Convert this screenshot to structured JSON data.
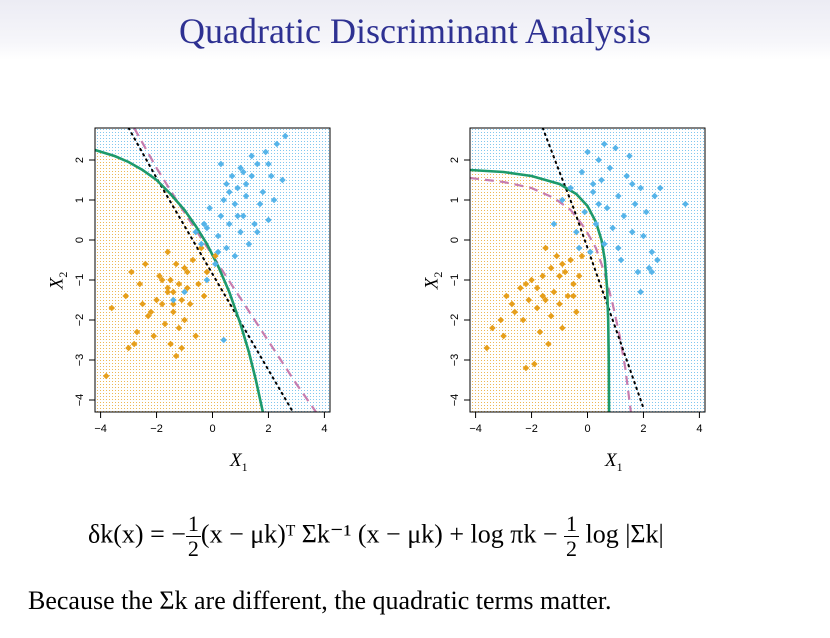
{
  "title": "Quadratic Discriminant Analysis",
  "equation": {
    "lhs": "δk(x) = −",
    "frac_num": "1",
    "frac_den": "2",
    "body": "(x − μk)ᵀ Σk⁻¹ (x − μk) + log πk −",
    "tail": "log |Σk|"
  },
  "caption": "Because the Σk are different, the quadratic terms matter.",
  "colors": {
    "class1": "#e69f1c",
    "class2": "#56b4e9",
    "qda_boundary": "#1d9a6c",
    "lda_boundary": "#000000",
    "bayes_boundary": "#c77daf",
    "title": "#2e3192"
  },
  "chart_data": [
    {
      "type": "scatter",
      "xlabel": "X1",
      "ylabel": "X2",
      "xlim": [
        -4.2,
        4.2
      ],
      "ylim": [
        -4.3,
        2.8
      ],
      "xticks": [
        -4,
        -2,
        0,
        2,
        4
      ],
      "yticks": [
        -4,
        -3,
        -2,
        -1,
        0,
        1,
        2
      ],
      "series": [
        {
          "points": [
            [
              -3.8,
              -3.4
            ],
            [
              -3.6,
              -1.7
            ],
            [
              -3.1,
              -1.4
            ],
            [
              -3.0,
              -2.7
            ],
            [
              -2.9,
              -0.8
            ],
            [
              -2.8,
              -2.6
            ],
            [
              -2.7,
              -2.3
            ],
            [
              -2.6,
              -1.1
            ],
            [
              -2.5,
              -1.6
            ],
            [
              -2.4,
              -0.6
            ],
            [
              -2.3,
              -1.9
            ],
            [
              -2.2,
              -1.8
            ],
            [
              -2.1,
              -2.4
            ],
            [
              -2.0,
              -1.5
            ],
            [
              -1.9,
              -0.9
            ],
            [
              -1.8,
              -1.6
            ],
            [
              -1.7,
              -2.1
            ],
            [
              -1.6,
              -1.3
            ],
            [
              -1.6,
              -0.3
            ],
            [
              -1.5,
              -1.0
            ],
            [
              -1.5,
              -2.6
            ],
            [
              -1.4,
              -1.8
            ],
            [
              -1.4,
              -1.3
            ],
            [
              -1.3,
              -0.6
            ],
            [
              -1.3,
              -2.9
            ],
            [
              -1.2,
              -1.1
            ],
            [
              -1.2,
              -2.2
            ],
            [
              -1.1,
              -1.5
            ],
            [
              -1.0,
              -0.7
            ],
            [
              -1.0,
              -2.0
            ],
            [
              -0.9,
              -1.2
            ],
            [
              -0.8,
              -1.6
            ],
            [
              -0.7,
              -0.5
            ],
            [
              -0.6,
              -2.4
            ],
            [
              -0.5,
              -1.1
            ],
            [
              -0.4,
              -0.2
            ],
            [
              -0.3,
              -1.4
            ],
            [
              -0.2,
              -0.8
            ],
            [
              0.1,
              -0.4
            ],
            [
              -1.8,
              -1.0
            ],
            [
              -1.4,
              -1.6
            ],
            [
              -1.1,
              -2.7
            ],
            [
              -0.9,
              -0.8
            ],
            [
              -1.6,
              -1.2
            ]
          ]
        },
        {
          "points": [
            [
              -1.4,
              -1.5
            ],
            [
              -1.0,
              -1.3
            ],
            [
              -0.6,
              0.2
            ],
            [
              -0.4,
              -0.1
            ],
            [
              -0.2,
              0.3
            ],
            [
              -0.1,
              0.8
            ],
            [
              0.1,
              -0.6
            ],
            [
              0.2,
              0.1
            ],
            [
              0.3,
              0.6
            ],
            [
              0.4,
              1.0
            ],
            [
              0.5,
              -0.2
            ],
            [
              0.6,
              0.4
            ],
            [
              0.7,
              1.6
            ],
            [
              0.8,
              0.9
            ],
            [
              0.8,
              -0.4
            ],
            [
              0.9,
              1.3
            ],
            [
              1.0,
              0.2
            ],
            [
              1.0,
              1.8
            ],
            [
              1.1,
              0.6
            ],
            [
              1.2,
              1.1
            ],
            [
              1.3,
              -0.1
            ],
            [
              1.4,
              1.6
            ],
            [
              1.5,
              0.4
            ],
            [
              1.6,
              1.9
            ],
            [
              1.7,
              0.9
            ],
            [
              1.8,
              1.2
            ],
            [
              1.9,
              2.2
            ],
            [
              2.0,
              0.5
            ],
            [
              2.1,
              1.6
            ],
            [
              2.2,
              1.0
            ],
            [
              2.3,
              2.4
            ],
            [
              2.5,
              1.5
            ],
            [
              2.6,
              2.6
            ],
            [
              1.2,
              1.4
            ],
            [
              0.6,
              1.2
            ],
            [
              1.6,
              0.2
            ],
            [
              0.9,
              0.6
            ],
            [
              0.3,
              1.9
            ],
            [
              -0.3,
              0.4
            ],
            [
              0.5,
              1.4
            ],
            [
              1.4,
              2.1
            ],
            [
              0.2,
              -0.3
            ],
            [
              1.1,
              1.7
            ],
            [
              2.0,
              1.9
            ],
            [
              -0.2,
              -1.0
            ],
            [
              0.4,
              -2.5
            ]
          ]
        }
      ],
      "boundaries": {
        "qda": [
          [
            -4.2,
            2.25
          ],
          [
            -3.5,
            2.1
          ],
          [
            -3.0,
            1.95
          ],
          [
            -2.5,
            1.75
          ],
          [
            -2.0,
            1.5
          ],
          [
            -1.5,
            1.15
          ],
          [
            -1.0,
            0.75
          ],
          [
            -0.6,
            0.35
          ],
          [
            -0.2,
            -0.1
          ],
          [
            0.2,
            -0.65
          ],
          [
            0.6,
            -1.3
          ],
          [
            1.0,
            -2.1
          ],
          [
            1.3,
            -2.8
          ],
          [
            1.55,
            -3.5
          ],
          [
            1.8,
            -4.3
          ]
        ],
        "lda": [
          [
            -3.0,
            2.8
          ],
          [
            -2.0,
            1.55
          ],
          [
            -1.0,
            0.35
          ],
          [
            0.0,
            -0.85
          ],
          [
            1.0,
            -2.05
          ],
          [
            2.0,
            -3.25
          ],
          [
            3.0,
            -4.45
          ]
        ],
        "bayes": [
          [
            -2.8,
            2.8
          ],
          [
            -2.0,
            1.8
          ],
          [
            -1.2,
            0.9
          ],
          [
            -0.5,
            0.15
          ],
          [
            0.2,
            -0.6
          ],
          [
            0.9,
            -1.35
          ],
          [
            1.6,
            -2.1
          ],
          [
            2.3,
            -2.85
          ],
          [
            3.0,
            -3.6
          ],
          [
            3.7,
            -4.3
          ]
        ]
      }
    },
    {
      "type": "scatter",
      "xlabel": "X1",
      "ylabel": "X2",
      "xlim": [
        -4.2,
        4.2
      ],
      "ylim": [
        -4.3,
        2.8
      ],
      "xticks": [
        -4,
        -2,
        0,
        2,
        4
      ],
      "yticks": [
        -4,
        -3,
        -2,
        -1,
        0,
        1,
        2
      ],
      "series": [
        {
          "points": [
            [
              -3.6,
              -2.7
            ],
            [
              -3.4,
              -2.2
            ],
            [
              -3.1,
              -2.0
            ],
            [
              -3.0,
              -2.4
            ],
            [
              -2.9,
              -1.4
            ],
            [
              -2.7,
              -1.6
            ],
            [
              -2.6,
              -1.8
            ],
            [
              -2.4,
              -1.2
            ],
            [
              -2.3,
              -2.0
            ],
            [
              -2.2,
              -3.2
            ],
            [
              -2.1,
              -1.5
            ],
            [
              -2.0,
              -1.0
            ],
            [
              -1.9,
              -3.1
            ],
            [
              -1.8,
              -1.7
            ],
            [
              -1.8,
              -1.2
            ],
            [
              -1.7,
              -2.3
            ],
            [
              -1.6,
              -0.9
            ],
            [
              -1.5,
              -1.5
            ],
            [
              -1.4,
              -2.6
            ],
            [
              -1.3,
              -0.7
            ],
            [
              -1.3,
              -1.9
            ],
            [
              -1.2,
              -1.3
            ],
            [
              -1.1,
              -0.4
            ],
            [
              -1.0,
              -1.6
            ],
            [
              -0.9,
              -2.2
            ],
            [
              -0.8,
              -0.8
            ],
            [
              -0.7,
              -1.4
            ],
            [
              -0.6,
              -0.5
            ],
            [
              -0.5,
              -1.1
            ],
            [
              -0.4,
              -1.8
            ],
            [
              -0.3,
              -0.9
            ],
            [
              -0.2,
              -0.4
            ],
            [
              -1.6,
              -1.4
            ],
            [
              -2.2,
              -1.1
            ],
            [
              -1.0,
              -0.9
            ],
            [
              -0.5,
              -1.4
            ],
            [
              -1.5,
              -0.2
            ],
            [
              -0.9,
              -0.6
            ]
          ]
        },
        {
          "points": [
            [
              -1.2,
              0.4
            ],
            [
              -0.9,
              1.0
            ],
            [
              -0.6,
              1.3
            ],
            [
              -0.4,
              0.2
            ],
            [
              -0.2,
              1.7
            ],
            [
              -0.1,
              0.7
            ],
            [
              0.0,
              2.2
            ],
            [
              0.1,
              -0.3
            ],
            [
              0.2,
              1.2
            ],
            [
              0.3,
              0.4
            ],
            [
              0.4,
              2.0
            ],
            [
              0.5,
              1.5
            ],
            [
              0.6,
              -0.1
            ],
            [
              0.7,
              0.8
            ],
            [
              0.8,
              1.8
            ],
            [
              0.9,
              0.3
            ],
            [
              1.0,
              2.3
            ],
            [
              1.1,
              1.1
            ],
            [
              1.2,
              -0.5
            ],
            [
              1.3,
              0.6
            ],
            [
              1.4,
              1.6
            ],
            [
              1.5,
              2.1
            ],
            [
              1.6,
              0.2
            ],
            [
              1.7,
              0.9
            ],
            [
              1.8,
              -0.8
            ],
            [
              1.9,
              1.3
            ],
            [
              2.0,
              0.1
            ],
            [
              2.1,
              0.7
            ],
            [
              2.2,
              -0.7
            ],
            [
              2.3,
              -0.3
            ],
            [
              2.4,
              1.1
            ],
            [
              2.5,
              -0.5
            ],
            [
              2.6,
              1.3
            ],
            [
              3.5,
              0.9
            ],
            [
              1.1,
              -0.2
            ],
            [
              0.6,
              2.4
            ],
            [
              0.4,
              0.9
            ],
            [
              1.9,
              -1.3
            ],
            [
              2.3,
              -0.8
            ],
            [
              -0.3,
              -0.2
            ],
            [
              0.2,
              1.4
            ],
            [
              1.6,
              1.4
            ]
          ]
        }
      ],
      "boundaries": {
        "qda": [
          [
            -4.2,
            1.75
          ],
          [
            -3.0,
            1.7
          ],
          [
            -2.0,
            1.6
          ],
          [
            -1.0,
            1.4
          ],
          [
            -0.4,
            1.15
          ],
          [
            0.0,
            0.85
          ],
          [
            0.3,
            0.45
          ],
          [
            0.5,
            0.0
          ],
          [
            0.62,
            -0.5
          ],
          [
            0.7,
            -1.2
          ],
          [
            0.74,
            -2.0
          ],
          [
            0.76,
            -3.0
          ],
          [
            0.77,
            -4.3
          ]
        ],
        "lda": [
          [
            -1.6,
            2.8
          ],
          [
            -1.0,
            1.7
          ],
          [
            -0.5,
            0.8
          ],
          [
            0.0,
            -0.2
          ],
          [
            0.5,
            -1.2
          ],
          [
            1.0,
            -2.2
          ],
          [
            1.5,
            -3.2
          ],
          [
            2.0,
            -4.2
          ]
        ],
        "bayes": [
          [
            -4.2,
            1.55
          ],
          [
            -3.0,
            1.45
          ],
          [
            -2.0,
            1.3
          ],
          [
            -1.2,
            1.05
          ],
          [
            -0.6,
            0.75
          ],
          [
            -0.1,
            0.3
          ],
          [
            0.3,
            -0.2
          ],
          [
            0.6,
            -0.8
          ],
          [
            0.9,
            -1.6
          ],
          [
            1.15,
            -2.4
          ],
          [
            1.35,
            -3.2
          ],
          [
            1.55,
            -4.3
          ]
        ]
      }
    }
  ]
}
